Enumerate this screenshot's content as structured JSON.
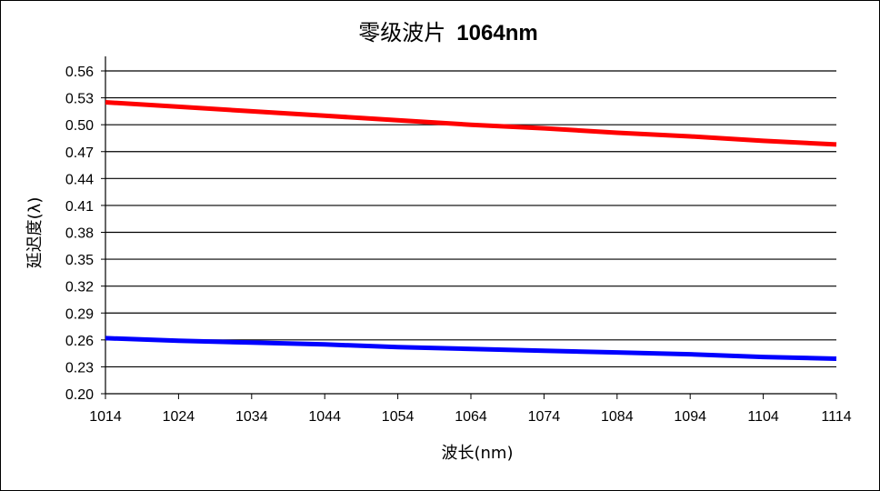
{
  "chart_data": {
    "type": "line",
    "title_cn": "零级波片",
    "title_en": "1064nm",
    "xlabel": "波长(nm)",
    "ylabel": "延迟度(λ)",
    "xlim": [
      1014,
      1114
    ],
    "ylim": [
      0.2,
      0.56
    ],
    "x_ticks": [
      "1014",
      "1024",
      "1034",
      "1044",
      "1054",
      "1064",
      "1074",
      "1084",
      "1094",
      "1104",
      "1114"
    ],
    "y_ticks": [
      "0.20",
      "0.23",
      "0.26",
      "0.29",
      "0.32",
      "0.35",
      "0.38",
      "0.41",
      "0.44",
      "0.47",
      "0.50",
      "0.53",
      "0.56"
    ],
    "grid": true,
    "series": [
      {
        "color": "#ff0000",
        "x": [
          1014,
          1024,
          1034,
          1044,
          1054,
          1064,
          1074,
          1084,
          1094,
          1104,
          1114
        ],
        "values": [
          0.525,
          0.52,
          0.515,
          0.51,
          0.505,
          0.5,
          0.496,
          0.491,
          0.487,
          0.482,
          0.478
        ]
      },
      {
        "color": "#0000ff",
        "x": [
          1014,
          1024,
          1034,
          1044,
          1054,
          1064,
          1074,
          1084,
          1094,
          1104,
          1114
        ],
        "values": [
          0.262,
          0.259,
          0.257,
          0.255,
          0.252,
          0.25,
          0.248,
          0.246,
          0.244,
          0.241,
          0.239
        ]
      }
    ]
  }
}
